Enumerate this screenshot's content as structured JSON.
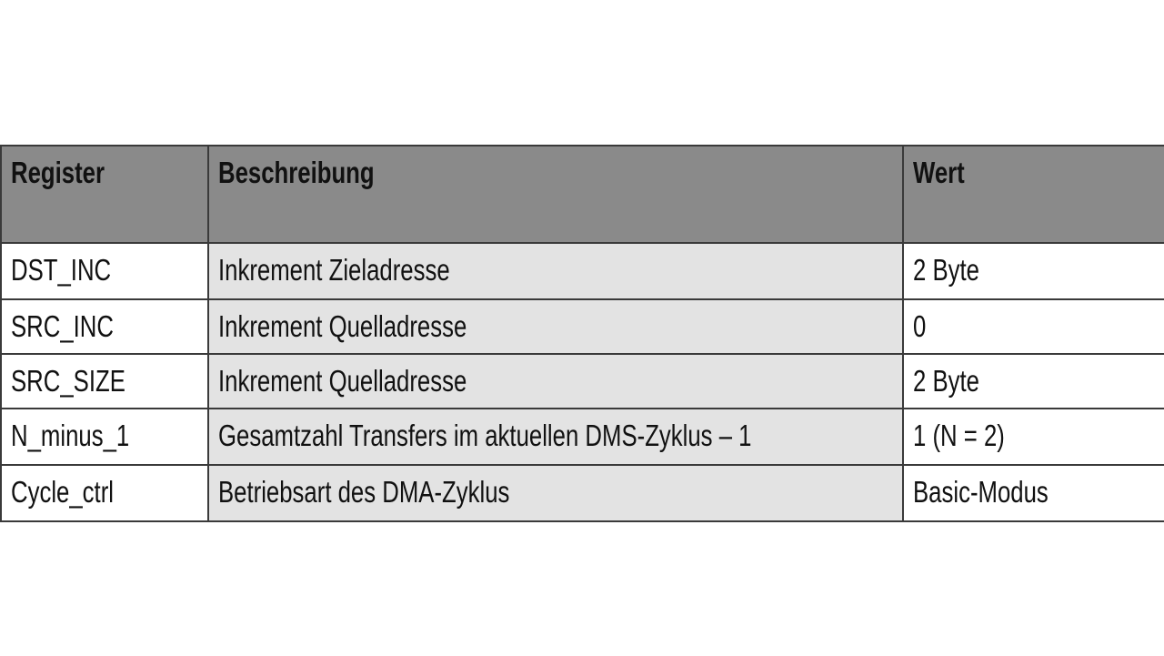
{
  "table": {
    "headers": [
      "Register",
      "Beschreibung",
      "Wert"
    ],
    "rows": [
      [
        "DST_INC",
        "Inkrement Zieladresse",
        "2 Byte"
      ],
      [
        "SRC_INC",
        "Inkrement Quelladresse",
        "0"
      ],
      [
        "SRC_SIZE",
        "Inkrement Quelladresse",
        "2 Byte"
      ],
      [
        "N_minus_1",
        "Gesamtzahl Transfers im aktuellen DMS-Zyklus – 1",
        "1 (N = 2)"
      ],
      [
        "Cycle_ctrl",
        "Betriebsart des DMA-Zyklus",
        "Basic-Modus"
      ]
    ]
  },
  "colors": {
    "header_bg": "#8a8a8a",
    "middle_column_bg": "#e3e3e3",
    "border": "#3a3a3a"
  }
}
